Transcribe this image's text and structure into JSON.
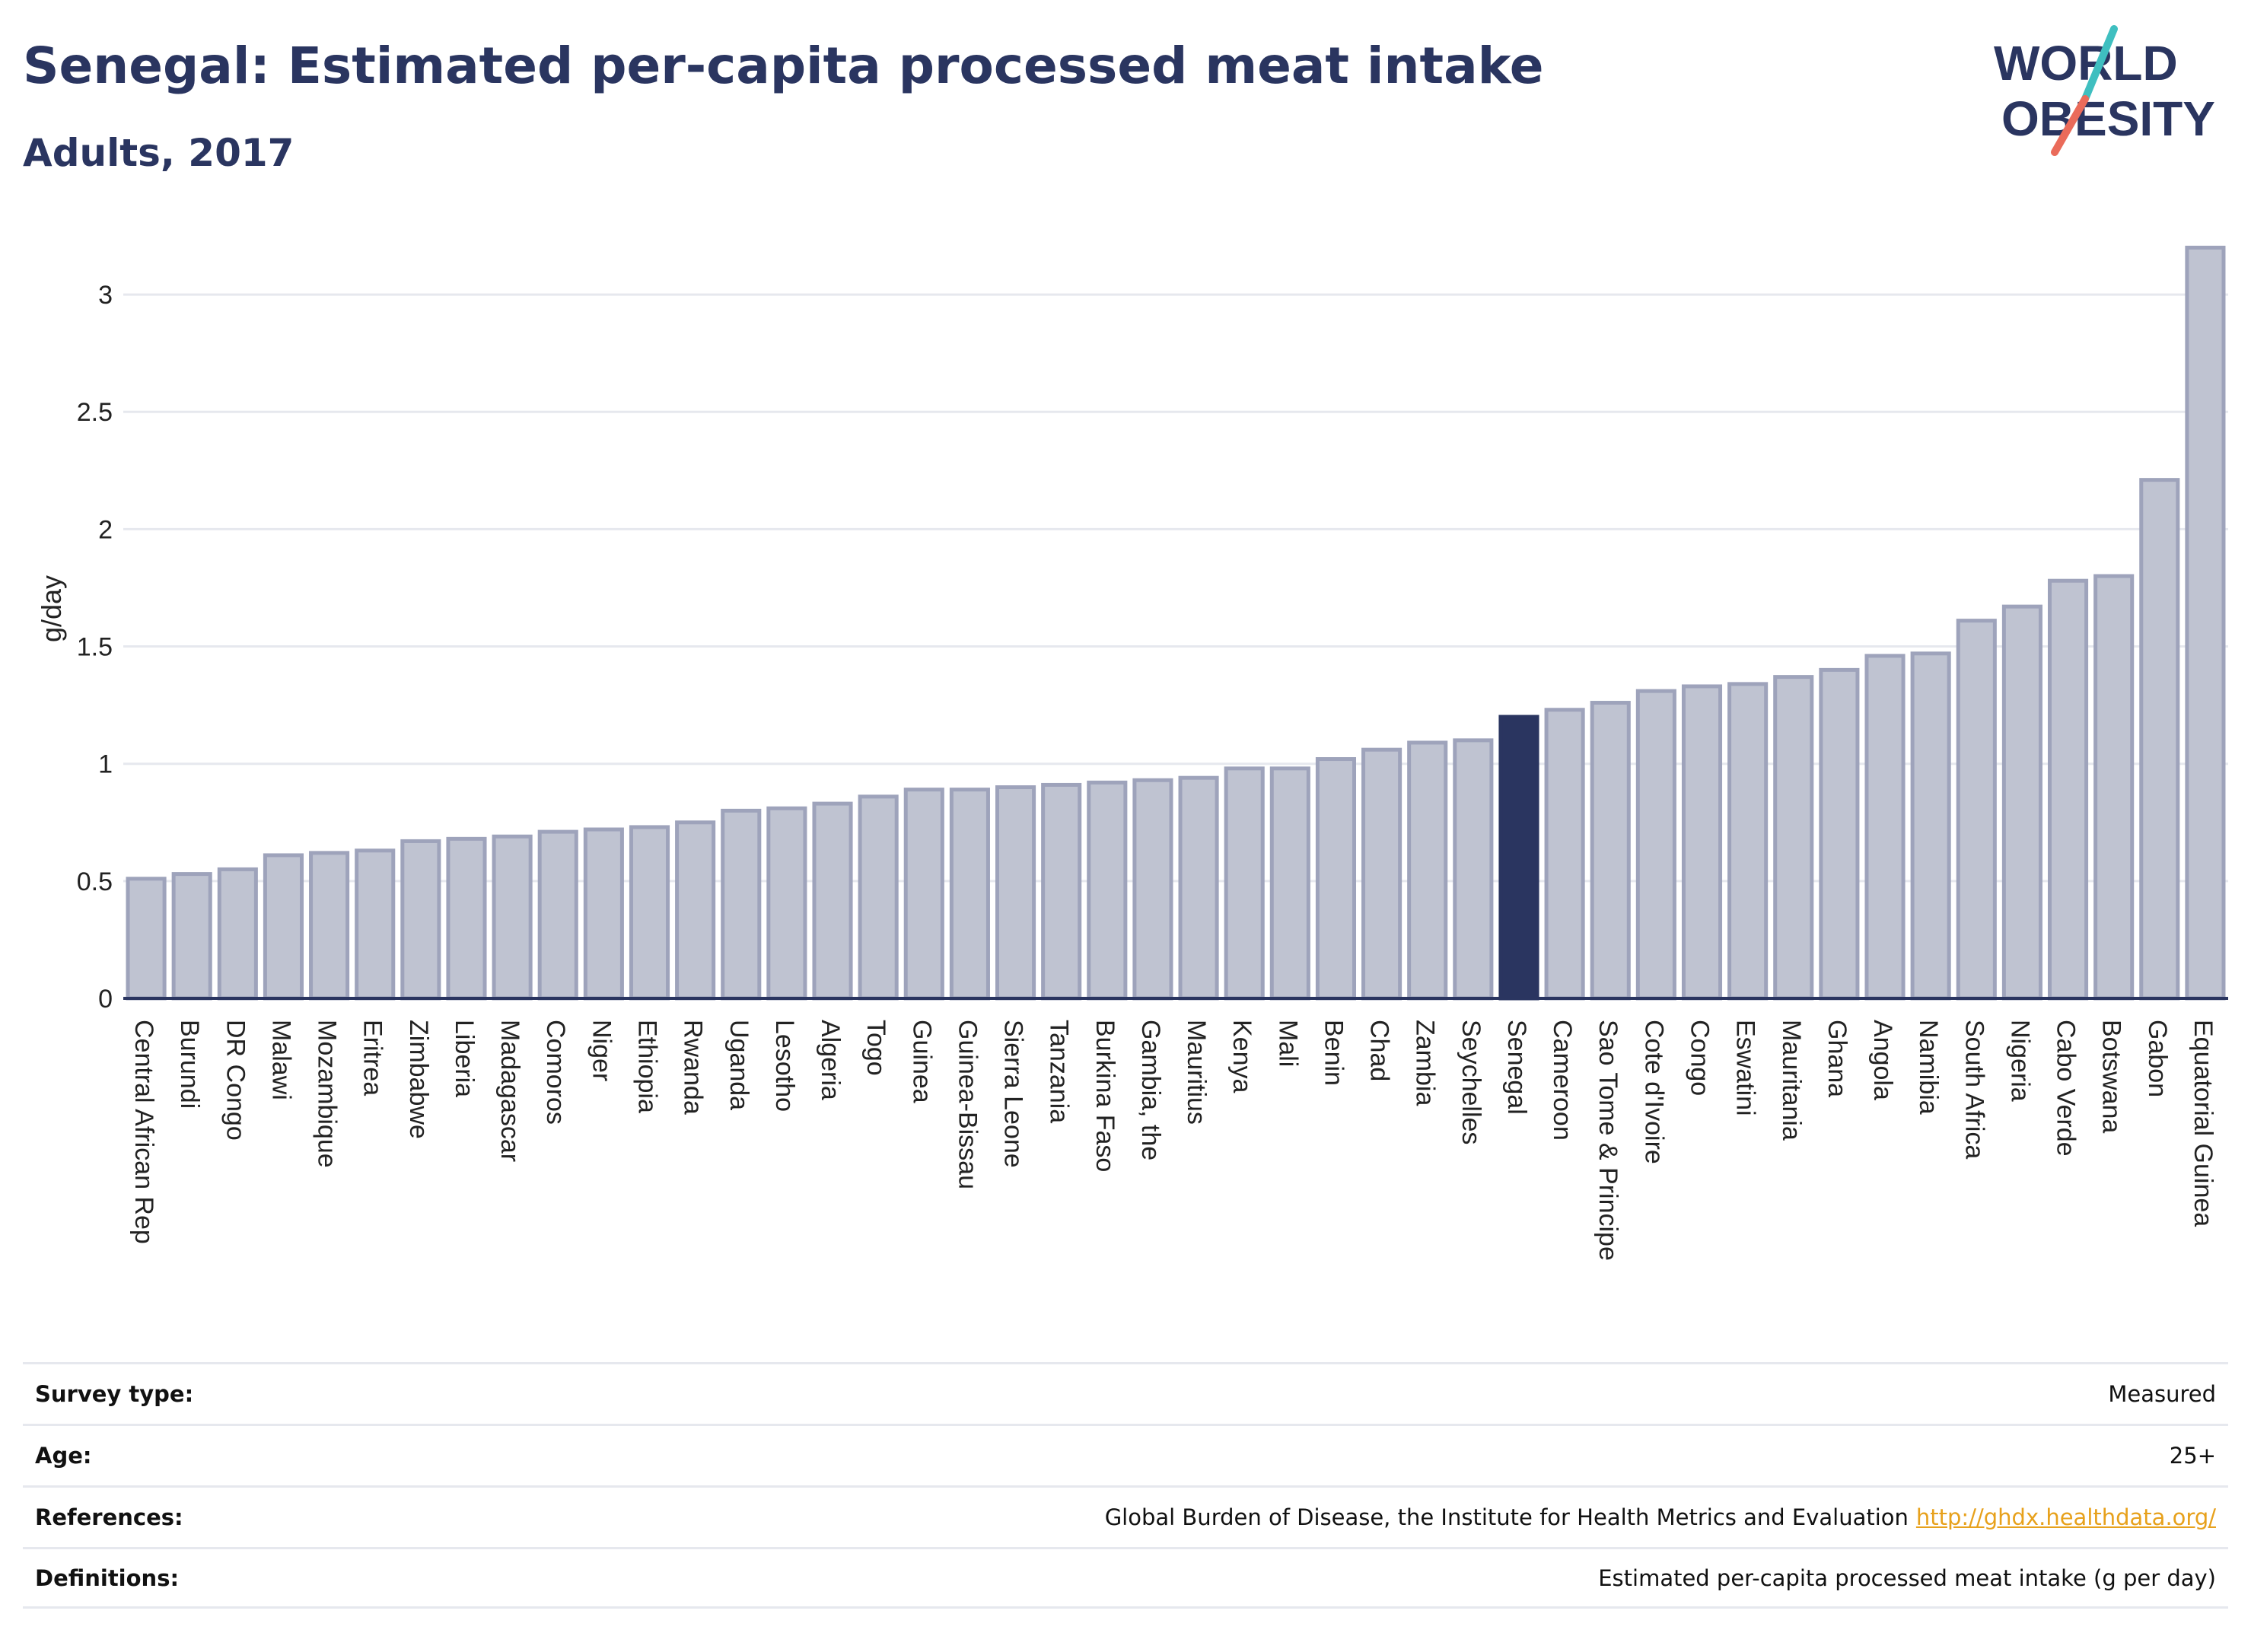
{
  "header": {
    "title": "Senegal: Estimated per-capita processed meat intake",
    "subtitle": "Adults, 2017"
  },
  "logo": {
    "line1": "WORLD",
    "line2": "OBESITY"
  },
  "colors": {
    "highlight": "#2a3560",
    "bar_fill": "#bfc3d1",
    "bar_stroke": "#9ea3bb",
    "title": "#2a3560",
    "link": "#e7a11c"
  },
  "chart_data": {
    "type": "bar",
    "ylabel": "g/day",
    "ylim": [
      0,
      3.25
    ],
    "yticks": [
      0,
      0.5,
      1,
      1.5,
      2,
      2.5,
      3
    ],
    "grid": true,
    "highlight": "Senegal",
    "categories": [
      "Central African Rep",
      "Burundi",
      "DR Congo",
      "Malawi",
      "Mozambique",
      "Eritrea",
      "Zimbabwe",
      "Liberia",
      "Madagascar",
      "Comoros",
      "Niger",
      "Ethiopia",
      "Rwanda",
      "Uganda",
      "Lesotho",
      "Algeria",
      "Togo",
      "Guinea",
      "Guinea-Bissau",
      "Sierra Leone",
      "Tanzania",
      "Burkina Faso",
      "Gambia, the",
      "Mauritius",
      "Kenya",
      "Mali",
      "Benin",
      "Chad",
      "Zambia",
      "Seychelles",
      "Senegal",
      "Cameroon",
      "Sao Tome & Principe",
      "Cote d'Ivoire",
      "Congo",
      "Eswatini",
      "Mauritania",
      "Ghana",
      "Angola",
      "Namibia",
      "South Africa",
      "Nigeria",
      "Cabo Verde",
      "Botswana",
      "Gabon",
      "Equatorial Guinea"
    ],
    "values": [
      0.51,
      0.53,
      0.55,
      0.61,
      0.62,
      0.63,
      0.67,
      0.68,
      0.69,
      0.71,
      0.72,
      0.73,
      0.75,
      0.8,
      0.81,
      0.83,
      0.86,
      0.89,
      0.89,
      0.9,
      0.91,
      0.92,
      0.93,
      0.94,
      0.98,
      0.98,
      1.02,
      1.06,
      1.09,
      1.1,
      1.2,
      1.23,
      1.26,
      1.31,
      1.33,
      1.34,
      1.37,
      1.4,
      1.46,
      1.47,
      1.61,
      1.67,
      1.78,
      1.8,
      2.21,
      3.2
    ]
  },
  "meta": {
    "survey_type_label": "Survey type:",
    "survey_type_value": "Measured",
    "age_label": "Age:",
    "age_value": "25+",
    "references_label": "References:",
    "references_value": "Global Burden of Disease, the Institute for Health Metrics and Evaluation",
    "references_link": "http://ghdx.healthdata.org/",
    "definitions_label": "Definitions:",
    "definitions_value": "Estimated per-capita processed meat intake (g per day)"
  }
}
